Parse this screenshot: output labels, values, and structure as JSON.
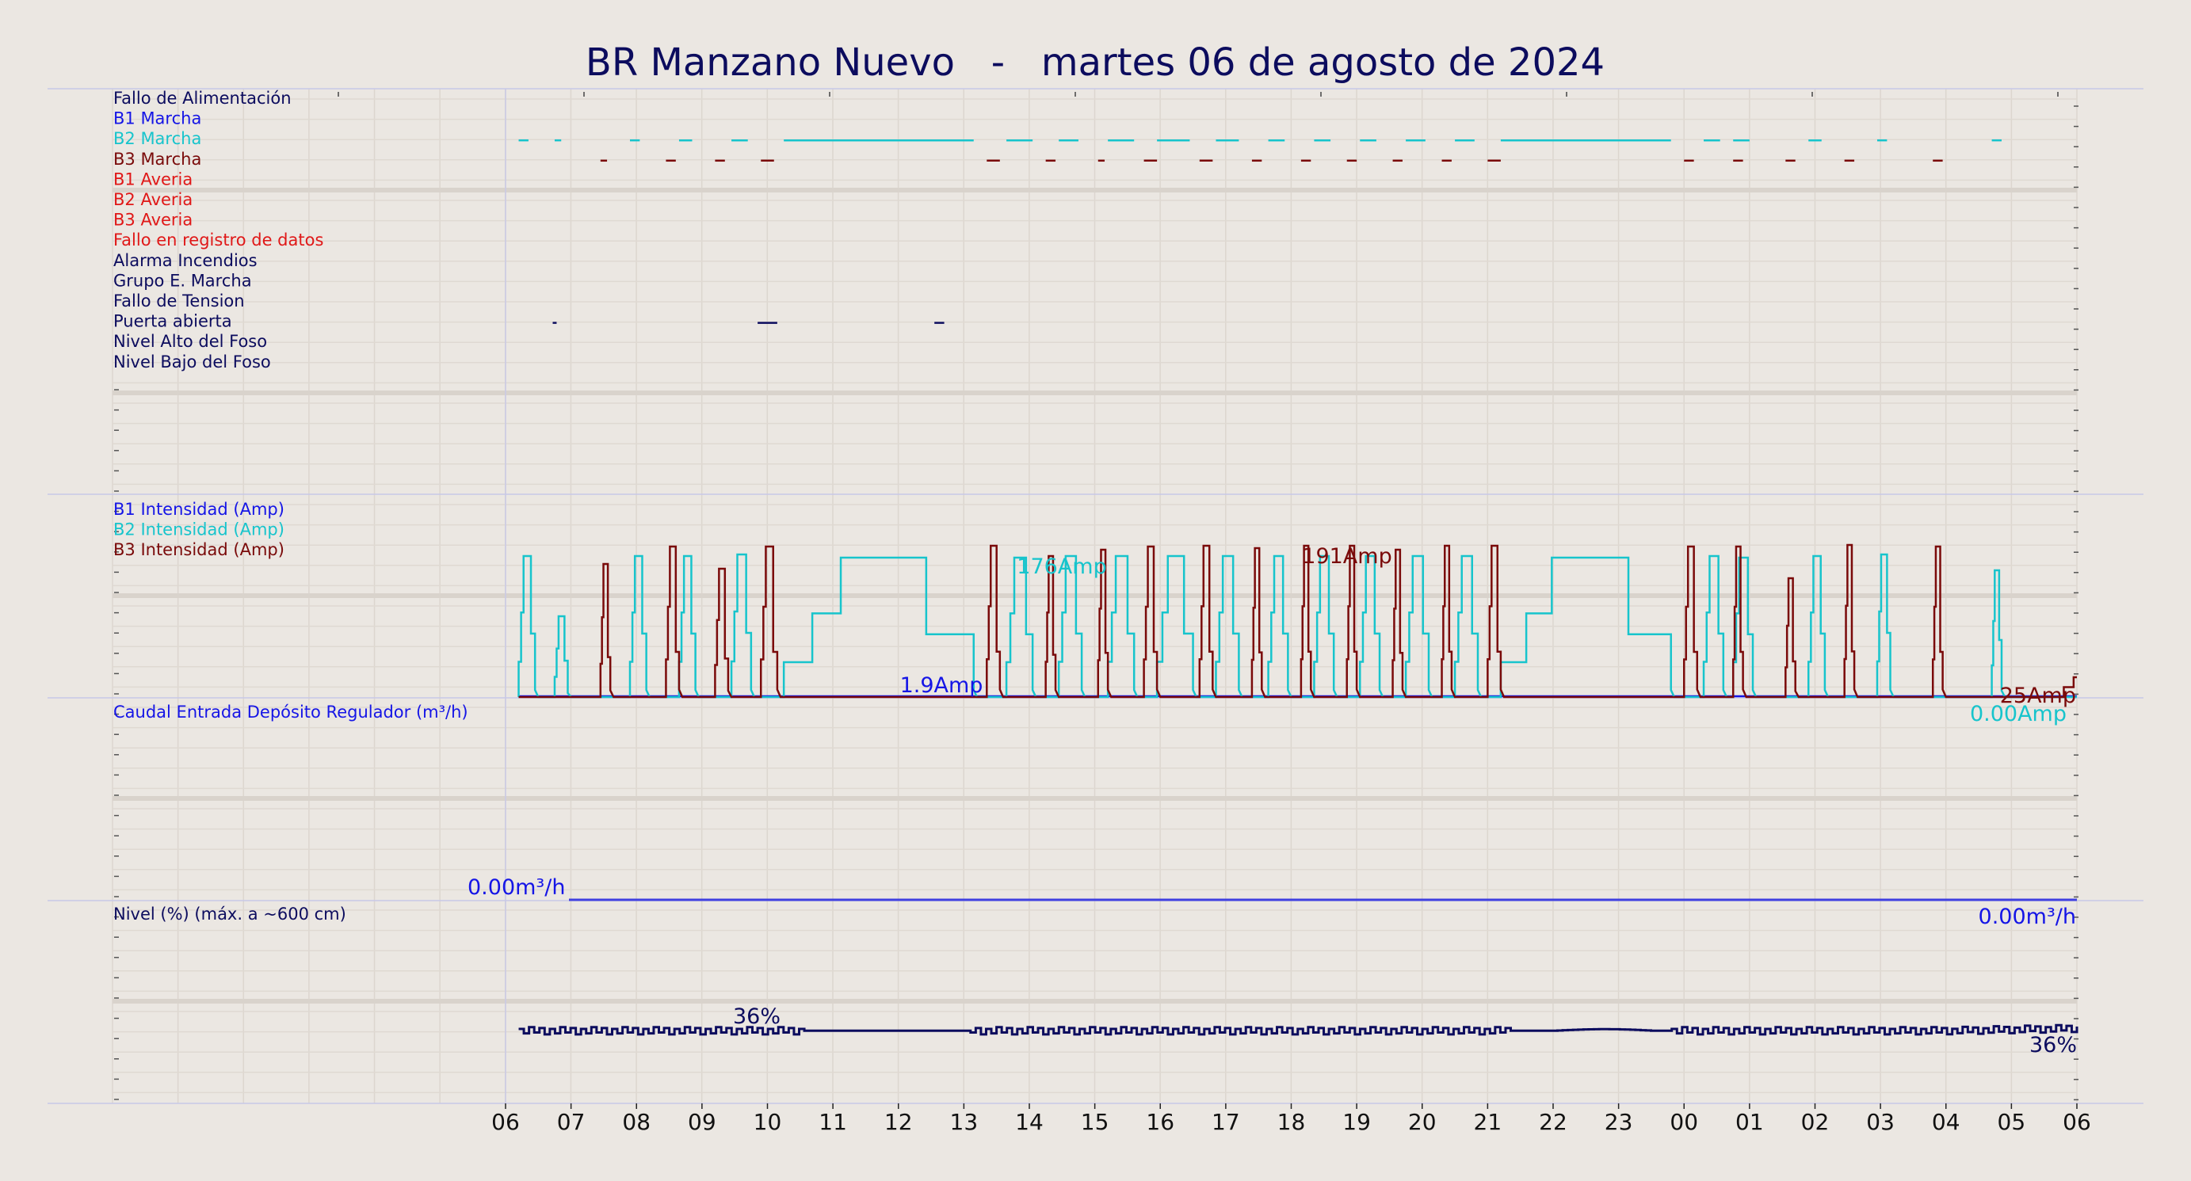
{
  "title": "BR Manzano Nuevo   -   martes 06 de agosto de 2024",
  "colors": {
    "background": "#ebe7e2",
    "b1": "#1515e6",
    "b2": "#17c4cc",
    "b3": "#7a0a0a",
    "navy": "#0c0c5e",
    "red": "#e01818",
    "caudal": "#4040e0"
  },
  "x_axis": {
    "tick_labels": [
      "06",
      "07",
      "08",
      "09",
      "10",
      "11",
      "12",
      "13",
      "14",
      "15",
      "16",
      "17",
      "18",
      "19",
      "20",
      "21",
      "22",
      "23",
      "00",
      "01",
      "02",
      "03",
      "04",
      "05",
      "06"
    ],
    "start_hour": 6,
    "end_hour": 30
  },
  "chart_data": [
    {
      "type": "line",
      "name": "panel-digital",
      "series_labels": [
        {
          "text": "Fallo de Alimentación",
          "color": "#0c0c5e"
        },
        {
          "text": "B1 Marcha",
          "color": "#1515e6"
        },
        {
          "text": "B2 Marcha",
          "color": "#17c4cc"
        },
        {
          "text": "B3 Marcha",
          "color": "#7a0a0a"
        },
        {
          "text": "B1 Averia",
          "color": "#e01818"
        },
        {
          "text": "B2 Averia",
          "color": "#e01818"
        },
        {
          "text": "B3 Averia",
          "color": "#e01818"
        },
        {
          "text": "Fallo en registro de datos",
          "color": "#e01818"
        },
        {
          "text": "Alarma Incendios",
          "color": "#0c0c5e"
        },
        {
          "text": "Grupo E. Marcha",
          "color": "#0c0c5e"
        },
        {
          "text": "Fallo de Tension",
          "color": "#0c0c5e"
        },
        {
          "text": "Puerta abierta",
          "color": "#0c0c5e"
        },
        {
          "text": "Nivel Alto del Foso",
          "color": "#0c0c5e"
        },
        {
          "text": "Nivel Bajo del Foso",
          "color": "#0c0c5e"
        }
      ],
      "b2_on_intervals": [
        [
          6.2,
          6.35
        ],
        [
          6.75,
          6.85
        ],
        [
          7.9,
          8.05
        ],
        [
          8.65,
          8.85
        ],
        [
          9.45,
          9.7
        ],
        [
          10.25,
          13.15
        ],
        [
          13.65,
          14.05
        ],
        [
          14.45,
          14.75
        ],
        [
          15.2,
          15.6
        ],
        [
          15.95,
          16.45
        ],
        [
          16.85,
          17.2
        ],
        [
          17.65,
          17.9
        ],
        [
          18.35,
          18.6
        ],
        [
          19.05,
          19.3
        ],
        [
          19.75,
          20.05
        ],
        [
          20.5,
          20.8
        ],
        [
          21.2,
          23.8
        ],
        [
          24.3,
          24.55
        ],
        [
          24.75,
          25.0
        ],
        [
          25.9,
          26.1
        ],
        [
          26.95,
          27.1
        ],
        [
          28.7,
          28.85
        ]
      ],
      "b3_on_intervals": [
        [
          7.45,
          7.55
        ],
        [
          8.45,
          8.6
        ],
        [
          9.2,
          9.35
        ],
        [
          9.9,
          10.1
        ],
        [
          13.35,
          13.55
        ],
        [
          14.25,
          14.4
        ],
        [
          15.05,
          15.15
        ],
        [
          15.75,
          15.95
        ],
        [
          16.6,
          16.8
        ],
        [
          17.4,
          17.55
        ],
        [
          18.15,
          18.3
        ],
        [
          18.85,
          19.0
        ],
        [
          19.55,
          19.7
        ],
        [
          20.3,
          20.45
        ],
        [
          21.0,
          21.2
        ],
        [
          24.0,
          24.15
        ],
        [
          24.75,
          24.9
        ],
        [
          25.55,
          25.7
        ],
        [
          26.45,
          26.6
        ],
        [
          27.8,
          27.95
        ]
      ],
      "puerta_on_intervals": [
        [
          6.72,
          6.78
        ],
        [
          9.85,
          10.15
        ],
        [
          12.55,
          12.7
        ]
      ]
    },
    {
      "type": "line",
      "name": "panel-intensidad",
      "series_labels": [
        {
          "text": "B1 Intensidad (Amp)",
          "color": "#1515e6"
        },
        {
          "text": "B2 Intensidad (Amp)",
          "color": "#17c4cc"
        },
        {
          "text": "B3 Intensidad (Amp)",
          "color": "#7a0a0a"
        }
      ],
      "y_range": [
        0,
        240
      ],
      "b2_peaks": [
        [
          6.2,
          6.45,
          178
        ],
        [
          6.75,
          6.95,
          102
        ],
        [
          7.9,
          8.15,
          178
        ],
        [
          8.65,
          8.9,
          178
        ],
        [
          9.45,
          9.75,
          180
        ],
        [
          10.25,
          13.15,
          176
        ],
        [
          13.65,
          14.05,
          176
        ],
        [
          14.45,
          14.8,
          178
        ],
        [
          15.2,
          15.6,
          178
        ],
        [
          15.95,
          16.5,
          178
        ],
        [
          16.85,
          17.2,
          178
        ],
        [
          17.65,
          17.95,
          178
        ],
        [
          18.35,
          18.65,
          178
        ],
        [
          19.05,
          19.35,
          178
        ],
        [
          19.75,
          20.1,
          178
        ],
        [
          20.5,
          20.85,
          178
        ],
        [
          21.2,
          23.8,
          176
        ],
        [
          24.3,
          24.6,
          178
        ],
        [
          24.75,
          25.05,
          176
        ],
        [
          25.9,
          26.15,
          178
        ],
        [
          26.95,
          27.15,
          180
        ],
        [
          28.7,
          28.85,
          160
        ]
      ],
      "b3_peaks": [
        [
          7.45,
          7.6,
          168
        ],
        [
          8.45,
          8.65,
          190
        ],
        [
          9.2,
          9.4,
          162
        ],
        [
          9.9,
          10.15,
          190
        ],
        [
          13.35,
          13.55,
          191
        ],
        [
          14.25,
          14.4,
          178
        ],
        [
          15.05,
          15.2,
          186
        ],
        [
          15.75,
          15.95,
          190
        ],
        [
          16.6,
          16.8,
          191
        ],
        [
          17.4,
          17.55,
          188
        ],
        [
          18.15,
          18.3,
          191
        ],
        [
          18.85,
          19.0,
          191
        ],
        [
          19.55,
          19.7,
          186
        ],
        [
          20.3,
          20.45,
          191
        ],
        [
          21.0,
          21.2,
          191
        ],
        [
          24.0,
          24.2,
          190
        ],
        [
          24.75,
          24.9,
          190
        ],
        [
          25.55,
          25.7,
          150
        ],
        [
          26.45,
          26.6,
          192
        ],
        [
          27.8,
          27.95,
          190
        ]
      ],
      "b3_end_value": 25,
      "annotations": [
        {
          "text": "176Amp",
          "color": "#17c4cc"
        },
        {
          "text": "191Amp",
          "color": "#7a0a0a"
        },
        {
          "text": "1.9Amp",
          "color": "#1515e6"
        },
        {
          "text": "25Amp",
          "color": "#7a0a0a"
        },
        {
          "text": "0.00Amp",
          "color": "#17c4cc"
        }
      ]
    },
    {
      "type": "line",
      "name": "panel-caudal",
      "series_labels": [
        {
          "text": "Caudal Entrada Depósito Regulador (m³/h)",
          "color": "#1515e6"
        }
      ],
      "x": [
        6,
        30
      ],
      "y": [
        0.0,
        0.0
      ],
      "annotations": [
        {
          "text": "0.00m³/h",
          "color": "#1515e6"
        },
        {
          "text": "0.00m³/h",
          "color": "#1515e6"
        }
      ]
    },
    {
      "type": "line",
      "name": "panel-nivel",
      "series_labels": [
        {
          "text": "Nivel (%) (máx. a ~600 cm)",
          "color": "#0c0c5e"
        }
      ],
      "y_range": [
        0,
        100
      ],
      "base_level": 36,
      "annotations": [
        {
          "text": "36%",
          "color": "#0c0c5e"
        },
        {
          "text": "36%",
          "color": "#0c0c5e"
        }
      ]
    }
  ]
}
